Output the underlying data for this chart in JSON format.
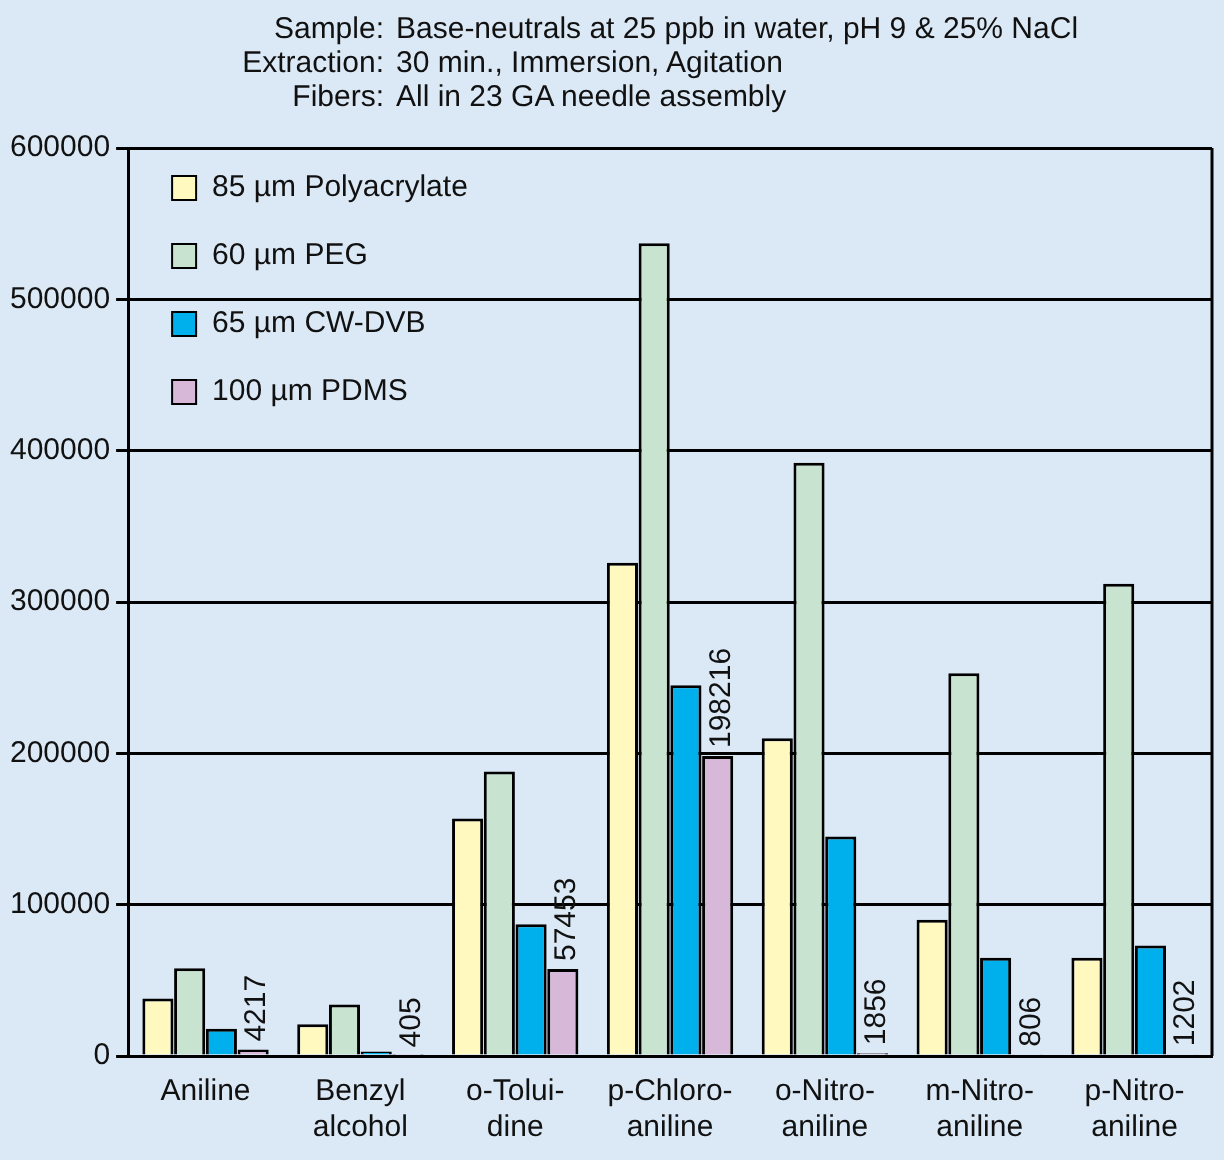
{
  "chart_data": {
    "type": "bar",
    "annotations": [
      "Sample:\tBase-neutrals at 25 ppb in water, pH 9 & 25% NaCl",
      "Extraction:\t30 min., Immersion, Agitation",
      "Fibers:\tAll in 23 GA needle assembly"
    ],
    "categories": [
      "Aniline",
      "Benzyl\nalcohol",
      "o-Tolui-\ndine",
      "p-Chloro-\naniline",
      "o-Nitro-\naniline",
      "m-Nitro-\naniline",
      "p-Nitro-\naniline"
    ],
    "series": [
      {
        "name": "85 µm Polyacrylate",
        "color": "#fff8bf",
        "values": [
          38000,
          21000,
          157000,
          326000,
          210000,
          90000,
          65000
        ]
      },
      {
        "name": "60 µm PEG",
        "color": "#c8e4d0",
        "values": [
          58000,
          34000,
          188000,
          537000,
          392000,
          253000,
          312000
        ]
      },
      {
        "name": "65 µm CW-DVB",
        "color": "#00b0ec",
        "values": [
          18000,
          3000,
          87000,
          245000,
          145000,
          65000,
          73000
        ]
      },
      {
        "name": "100 µm PDMS",
        "color": "#d8b8d8",
        "values": [
          4217,
          405,
          57453,
          198216,
          1856,
          806,
          1202
        ],
        "value_labels": [
          "4217",
          "405",
          "57453",
          "198216",
          "1856",
          "806",
          "1202"
        ]
      }
    ],
    "ylim": [
      0,
      600000
    ],
    "yticks": [
      0,
      100000,
      200000,
      300000,
      400000,
      500000,
      600000
    ],
    "grid": "y",
    "legend": "top left"
  }
}
